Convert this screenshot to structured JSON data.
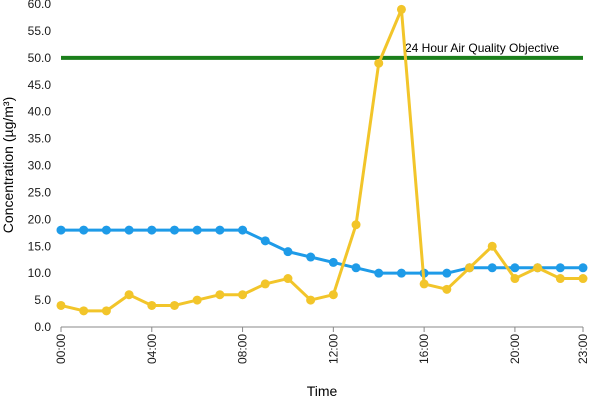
{
  "chart_data": {
    "type": "line",
    "title": "",
    "xlabel": "Time",
    "ylabel": "Concentration (µg/m³)",
    "ylim": [
      0,
      60
    ],
    "y_ticks": [
      "0.0",
      "5.0",
      "10.0",
      "15.0",
      "20.0",
      "25.0",
      "30.0",
      "35.0",
      "40.0",
      "45.0",
      "50.0",
      "55.0",
      "60.0"
    ],
    "x_range": [
      0,
      23
    ],
    "x_ticks": [
      {
        "hour": 0,
        "label": "00:00"
      },
      {
        "hour": 4,
        "label": "04:00"
      },
      {
        "hour": 8,
        "label": "08:00"
      },
      {
        "hour": 12,
        "label": "12:00"
      },
      {
        "hour": 16,
        "label": "16:00"
      },
      {
        "hour": 20,
        "label": "20:00"
      },
      {
        "hour": 23,
        "label": "23:00"
      }
    ],
    "x": [
      0,
      1,
      2,
      3,
      4,
      5,
      6,
      7,
      8,
      9,
      10,
      11,
      12,
      13,
      14,
      15,
      16,
      17,
      18,
      19,
      20,
      21,
      22,
      23
    ],
    "grid": false,
    "legend": "none",
    "series": [
      {
        "color": "#1E9BE8",
        "values": [
          18,
          18,
          18,
          18,
          18,
          18,
          18,
          18,
          18,
          16,
          14,
          13,
          12,
          11,
          10,
          10,
          10,
          10,
          11,
          11,
          11,
          11,
          11,
          11
        ]
      },
      {
        "color": "#F2C52A",
        "values": [
          4,
          3,
          3,
          6,
          4,
          4,
          5,
          6,
          6,
          8,
          9,
          5,
          6,
          19,
          49,
          59,
          8,
          7,
          11,
          15,
          9,
          11,
          9,
          9
        ]
      }
    ],
    "reference_line": {
      "value": 50,
      "label": "24 Hour Air Quality Objective",
      "color": "#1B7F1B"
    }
  }
}
